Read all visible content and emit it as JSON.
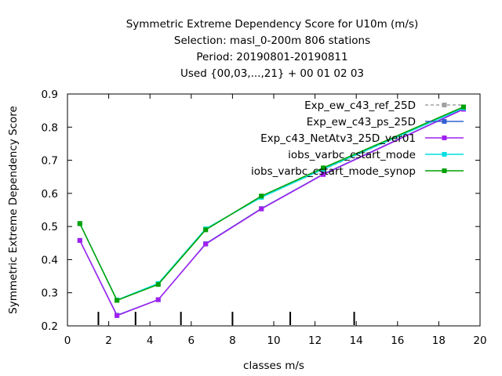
{
  "chart_data": {
    "type": "line",
    "title_lines": [
      "Symmetric Extreme Dependency Score  for U10m (m/s)",
      "Selection: masl_0-200m    806 stations",
      "Period: 20190801-20190811",
      "Used {00,03,...,21} + 00 01 02 03"
    ],
    "xlabel": "classes m/s",
    "ylabel": "Symmetric Extreme Dependency Score",
    "xlim": [
      0,
      20
    ],
    "ylim": [
      0.2,
      0.9
    ],
    "xticks": [
      0,
      2,
      4,
      6,
      8,
      10,
      12,
      14,
      16,
      18,
      20
    ],
    "yticks": [
      0.2,
      0.3,
      0.4,
      0.5,
      0.6,
      0.7,
      0.8,
      0.9
    ],
    "class_markers_x": [
      1.5,
      3.3,
      5.5,
      8.0,
      10.8,
      13.9
    ],
    "grid": false,
    "legend_position": "top-right",
    "series": [
      {
        "name": "Exp_ew_c43_ref_25D",
        "color": "#a0a0a0",
        "dashed": true,
        "x": [
          0.6,
          2.4,
          4.4,
          6.7,
          9.4,
          12.4,
          19.2
        ],
        "y": [
          0.508,
          0.277,
          0.327,
          0.491,
          0.591,
          0.672,
          0.858
        ]
      },
      {
        "name": "Exp_ew_c43_ps_25D",
        "color": "#3060d0",
        "dashed": false,
        "x": [
          0.6,
          2.4,
          4.4,
          6.7,
          9.4,
          12.4,
          19.2
        ],
        "y": [
          0.458,
          0.232,
          0.279,
          0.448,
          0.554,
          0.658,
          0.855
        ]
      },
      {
        "name": "Exp_c43_NetAtv3_25D_ver01",
        "color": "#a020f0",
        "dashed": false,
        "x": [
          0.6,
          2.4,
          4.4,
          6.7,
          9.4,
          12.4,
          19.2
        ],
        "y": [
          0.458,
          0.231,
          0.279,
          0.447,
          0.553,
          0.657,
          0.854
        ]
      },
      {
        "name": "iobs_varbc_cstart_mode",
        "color": "#00e0e0",
        "dashed": false,
        "x": [
          0.6,
          2.4,
          4.4,
          6.7,
          9.4,
          12.4,
          19.2
        ],
        "y": [
          0.509,
          0.278,
          0.328,
          0.493,
          0.588,
          0.673,
          0.858
        ]
      },
      {
        "name": "iobs_varbc_cstart_mode_synop",
        "color": "#00a000",
        "dashed": false,
        "x": [
          0.6,
          2.4,
          4.4,
          6.7,
          9.4,
          12.4,
          19.2
        ],
        "y": [
          0.509,
          0.277,
          0.325,
          0.49,
          0.592,
          0.677,
          0.861
        ]
      }
    ]
  }
}
